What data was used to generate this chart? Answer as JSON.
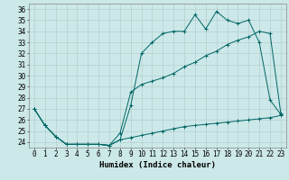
{
  "xlabel": "Humidex (Indice chaleur)",
  "bg_color": "#cce8e8",
  "grid_color": "#b0c8c8",
  "line_color": "#006666",
  "hours": [
    0,
    1,
    2,
    3,
    4,
    5,
    6,
    7,
    8,
    9,
    10,
    11,
    12,
    13,
    14,
    15,
    16,
    17,
    18,
    19,
    20,
    21,
    22,
    23
  ],
  "line1": [
    27.0,
    25.5,
    24.5,
    23.8,
    23.8,
    23.8,
    23.8,
    23.7,
    24.2,
    27.3,
    32.0,
    33.0,
    33.8,
    34.0,
    34.0,
    35.5,
    34.2,
    35.8,
    35.0,
    34.7,
    35.0,
    33.0,
    27.8,
    26.5
  ],
  "line2": [
    27.0,
    25.5,
    24.5,
    23.8,
    23.8,
    23.8,
    23.8,
    23.7,
    24.8,
    28.5,
    29.2,
    29.5,
    29.8,
    30.2,
    30.8,
    31.2,
    31.8,
    32.2,
    32.8,
    33.2,
    33.5,
    34.0,
    33.8,
    26.6
  ],
  "line3": [
    27.0,
    25.5,
    24.5,
    23.8,
    23.8,
    23.8,
    23.8,
    23.7,
    24.2,
    24.4,
    24.6,
    24.8,
    25.0,
    25.2,
    25.4,
    25.5,
    25.6,
    25.7,
    25.8,
    25.9,
    26.0,
    26.1,
    26.2,
    26.4
  ],
  "ylim": [
    23.5,
    36.5
  ],
  "yticks": [
    24,
    25,
    26,
    27,
    28,
    29,
    30,
    31,
    32,
    33,
    34,
    35,
    36
  ],
  "xlim": [
    -0.5,
    23.5
  ],
  "tick_fontsize": 5.5,
  "xlabel_fontsize": 6.5
}
